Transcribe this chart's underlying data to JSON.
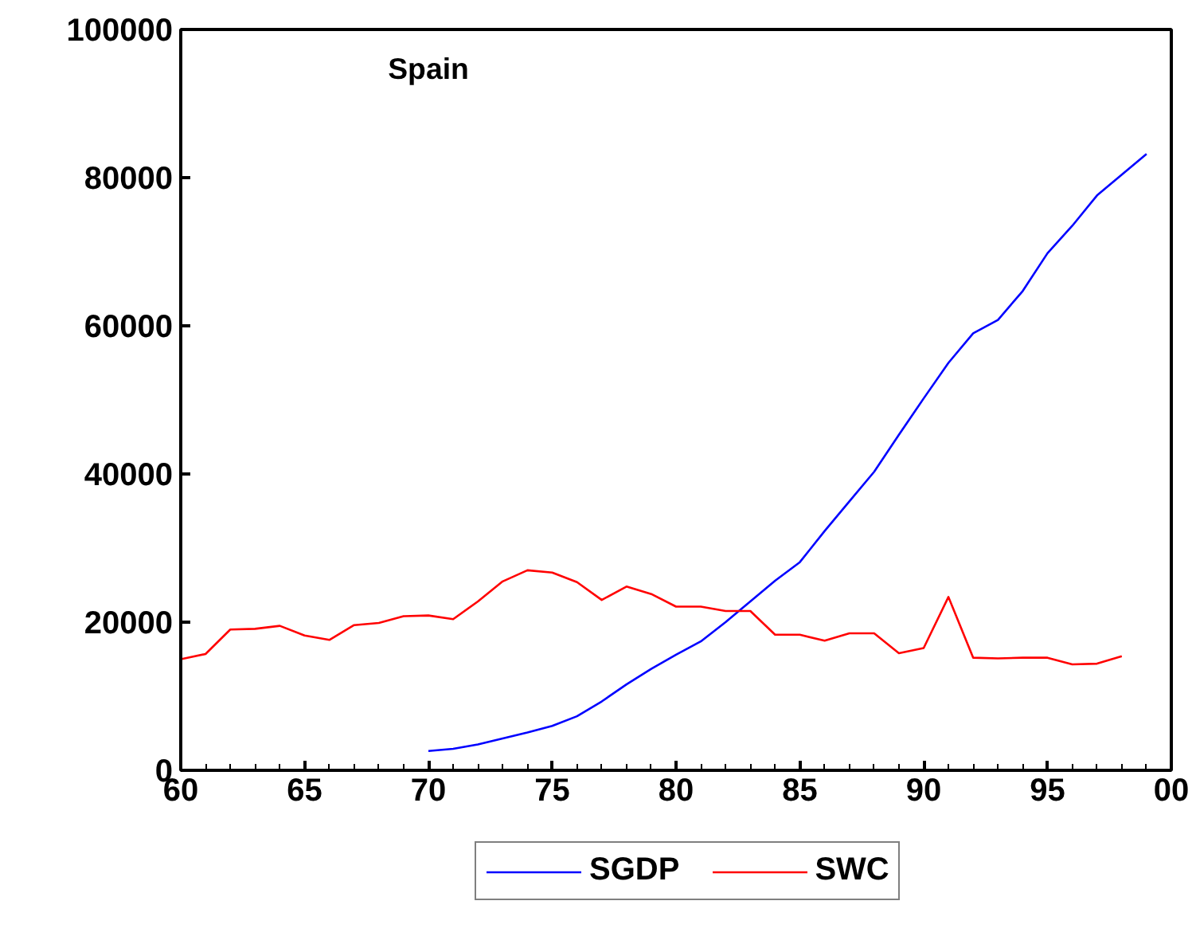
{
  "chart_data": {
    "type": "line",
    "title": "Spain",
    "x": [
      1960,
      1961,
      1962,
      1963,
      1964,
      1965,
      1966,
      1967,
      1968,
      1969,
      1970,
      1971,
      1972,
      1973,
      1974,
      1975,
      1976,
      1977,
      1978,
      1979,
      1980,
      1981,
      1982,
      1983,
      1984,
      1985,
      1986,
      1987,
      1988,
      1989,
      1990,
      1991,
      1992,
      1993,
      1994,
      1995,
      1996,
      1997,
      1998,
      1999
    ],
    "series": [
      {
        "name": "SGDP",
        "color": "#0000ff",
        "values": [
          null,
          null,
          null,
          null,
          null,
          null,
          null,
          null,
          null,
          null,
          2600,
          2900,
          3500,
          4300,
          5100,
          6000,
          7300,
          9300,
          11600,
          13700,
          15600,
          17400,
          20000,
          22800,
          25600,
          28100,
          32300,
          36300,
          40300,
          45300,
          50200,
          55000,
          59000,
          60800,
          64700,
          69800,
          73500,
          77600,
          80400,
          83200
        ]
      },
      {
        "name": "SWC",
        "color": "#ff0000",
        "values": [
          15000,
          15700,
          19000,
          19100,
          19500,
          18200,
          17600,
          19600,
          19900,
          20800,
          20900,
          20400,
          22800,
          25500,
          27000,
          26700,
          25400,
          23000,
          24800,
          23800,
          22100,
          22100,
          21500,
          21500,
          18300,
          18300,
          17500,
          18500,
          18500,
          15800,
          16500,
          23400,
          15200,
          15100,
          15200,
          15200,
          14300,
          14400,
          15400,
          null
        ]
      }
    ],
    "xlim": [
      1960,
      2000
    ],
    "xticks": [
      {
        "value": 1960,
        "label": "60"
      },
      {
        "value": 1965,
        "label": "65"
      },
      {
        "value": 1970,
        "label": "70"
      },
      {
        "value": 1975,
        "label": "75"
      },
      {
        "value": 1980,
        "label": "80"
      },
      {
        "value": 1985,
        "label": "85"
      },
      {
        "value": 1990,
        "label": "90"
      },
      {
        "value": 1995,
        "label": "95"
      },
      {
        "value": 2000,
        "label": "00"
      }
    ],
    "ylim": [
      0,
      100000
    ],
    "yticks": [
      0,
      20000,
      40000,
      60000,
      80000,
      100000
    ],
    "grid": false,
    "legend": "bottom",
    "marker": "none",
    "line_style": "solid"
  }
}
